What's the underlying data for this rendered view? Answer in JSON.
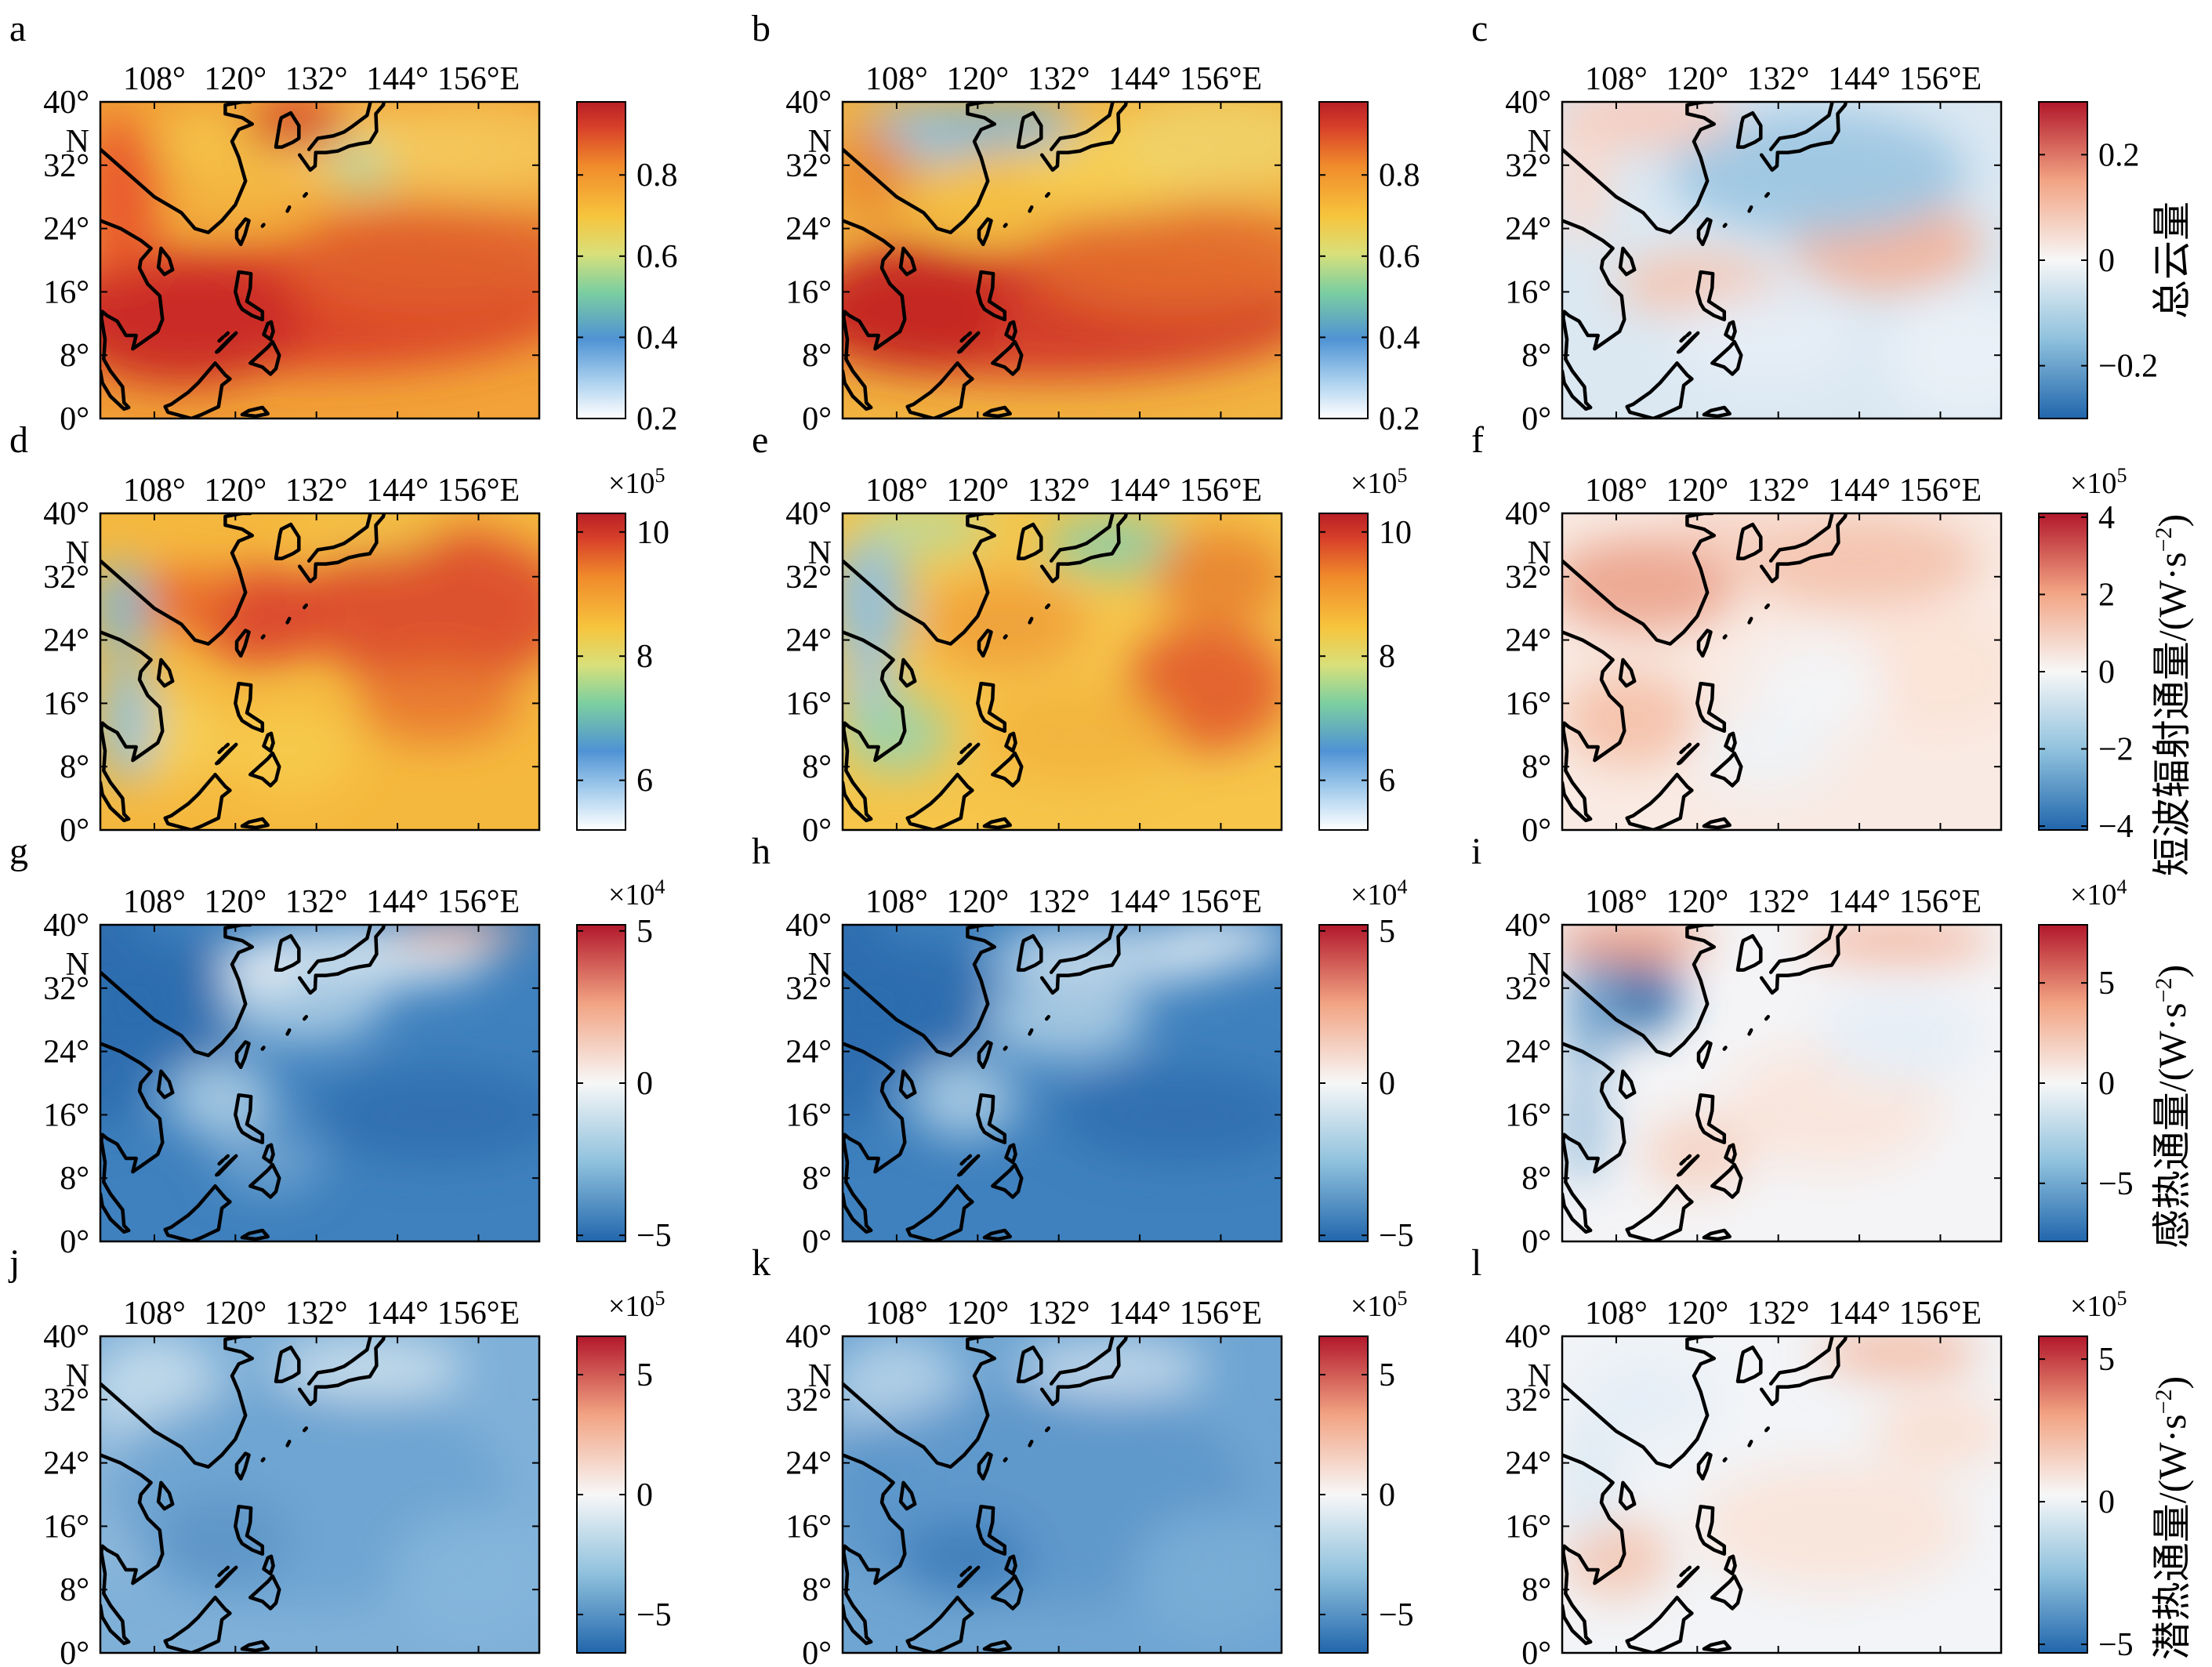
{
  "figure": {
    "panel_letters": [
      "a",
      "b",
      "c",
      "d",
      "e",
      "f",
      "g",
      "h",
      "i",
      "j",
      "k",
      "l"
    ],
    "lon_ticks": [
      "108°",
      "120°",
      "132°",
      "144°",
      "156°E"
    ],
    "lat_ticks": [
      "40°",
      "N",
      "32°",
      "24°",
      "16°",
      "8°",
      "0°"
    ],
    "lon_values": [
      108,
      120,
      132,
      144,
      156
    ],
    "lat_values": [
      40,
      32,
      24,
      16,
      8,
      0
    ],
    "extent": {
      "lon": [
        100,
        165
      ],
      "lat": [
        0,
        40
      ]
    }
  },
  "rows": [
    {
      "label": "总云量",
      "panels": [
        {
          "letter": "a",
          "colormap": "jet",
          "exponent": "",
          "cbar_ticks": [
            "0.8",
            "0.6",
            "0.4",
            "0.2"
          ],
          "cbar_values": [
            0.8,
            0.6,
            0.4,
            0.2
          ],
          "cbar_range": [
            0.2,
            0.98
          ]
        },
        {
          "letter": "b",
          "colormap": "jet",
          "exponent": "",
          "cbar_ticks": [
            "0.8",
            "0.6",
            "0.4",
            "0.2"
          ],
          "cbar_values": [
            0.8,
            0.6,
            0.4,
            0.2
          ],
          "cbar_range": [
            0.2,
            0.98
          ]
        },
        {
          "letter": "c",
          "colormap": "diverge",
          "exponent": "",
          "cbar_ticks": [
            "0.2",
            "0",
            "−0.2"
          ],
          "cbar_values": [
            0.2,
            0,
            -0.2
          ],
          "cbar_range": [
            -0.3,
            0.3
          ]
        }
      ]
    },
    {
      "label": "短波辐射通量/(W·s",
      "label_sup": "−2",
      "label_end": ")",
      "panels": [
        {
          "letter": "d",
          "colormap": "jet",
          "exponent": "×10",
          "exponent_sup": "5",
          "cbar_ticks": [
            "10",
            "8",
            "6"
          ],
          "cbar_values": [
            10,
            8,
            6
          ],
          "cbar_range": [
            5.2,
            10.3
          ]
        },
        {
          "letter": "e",
          "colormap": "jet",
          "exponent": "×10",
          "exponent_sup": "5",
          "cbar_ticks": [
            "10",
            "8",
            "6"
          ],
          "cbar_values": [
            10,
            8,
            6
          ],
          "cbar_range": [
            5.2,
            10.3
          ]
        },
        {
          "letter": "f",
          "colormap": "diverge",
          "exponent": "×10",
          "exponent_sup": "5",
          "cbar_ticks": [
            "4",
            "2",
            "0",
            "−2",
            "−4"
          ],
          "cbar_values": [
            4,
            2,
            0,
            -2,
            -4
          ],
          "cbar_range": [
            -4.1,
            4.1
          ]
        }
      ]
    },
    {
      "label": "感热通量/(W·s",
      "label_sup": "−2",
      "label_end": ")",
      "panels": [
        {
          "letter": "g",
          "colormap": "diverge",
          "exponent": "×10",
          "exponent_sup": "4",
          "cbar_ticks": [
            "5",
            "0",
            "−5"
          ],
          "cbar_values": [
            5,
            0,
            -5
          ],
          "cbar_range": [
            -5.2,
            5.2
          ]
        },
        {
          "letter": "h",
          "colormap": "diverge",
          "exponent": "×10",
          "exponent_sup": "4",
          "cbar_ticks": [
            "5",
            "0",
            "−5"
          ],
          "cbar_values": [
            5,
            0,
            -5
          ],
          "cbar_range": [
            -5.2,
            5.2
          ]
        },
        {
          "letter": "i",
          "colormap": "diverge",
          "exponent": "×10",
          "exponent_sup": "4",
          "cbar_ticks": [
            "5",
            "0",
            "−5"
          ],
          "cbar_values": [
            5,
            0,
            -5
          ],
          "cbar_range": [
            -7.9,
            7.9
          ]
        }
      ]
    },
    {
      "label": "潜热通量/(W·s",
      "label_sup": "−2",
      "label_end": ")",
      "panels": [
        {
          "letter": "j",
          "colormap": "diverge",
          "exponent": "×10",
          "exponent_sup": "5",
          "cbar_ticks": [
            "5",
            "0",
            "−5"
          ],
          "cbar_values": [
            5,
            0,
            -5
          ],
          "cbar_range": [
            -6.6,
            6.6
          ]
        },
        {
          "letter": "k",
          "colormap": "diverge",
          "exponent": "×10",
          "exponent_sup": "5",
          "cbar_ticks": [
            "5",
            "0",
            "−5"
          ],
          "cbar_values": [
            5,
            0,
            -5
          ],
          "cbar_range": [
            -6.6,
            6.6
          ]
        },
        {
          "letter": "l",
          "colormap": "diverge",
          "exponent": "×10",
          "exponent_sup": "5",
          "cbar_ticks": [
            "5",
            "0",
            "−5"
          ],
          "cbar_values": [
            5,
            0,
            -5
          ],
          "cbar_range": [
            -5.3,
            5.8
          ]
        }
      ]
    }
  ],
  "colors": {
    "coast": "#000000",
    "div_low": "#2166ac",
    "div_mid": "#f7f7f7",
    "div_high": "#b2182b"
  }
}
